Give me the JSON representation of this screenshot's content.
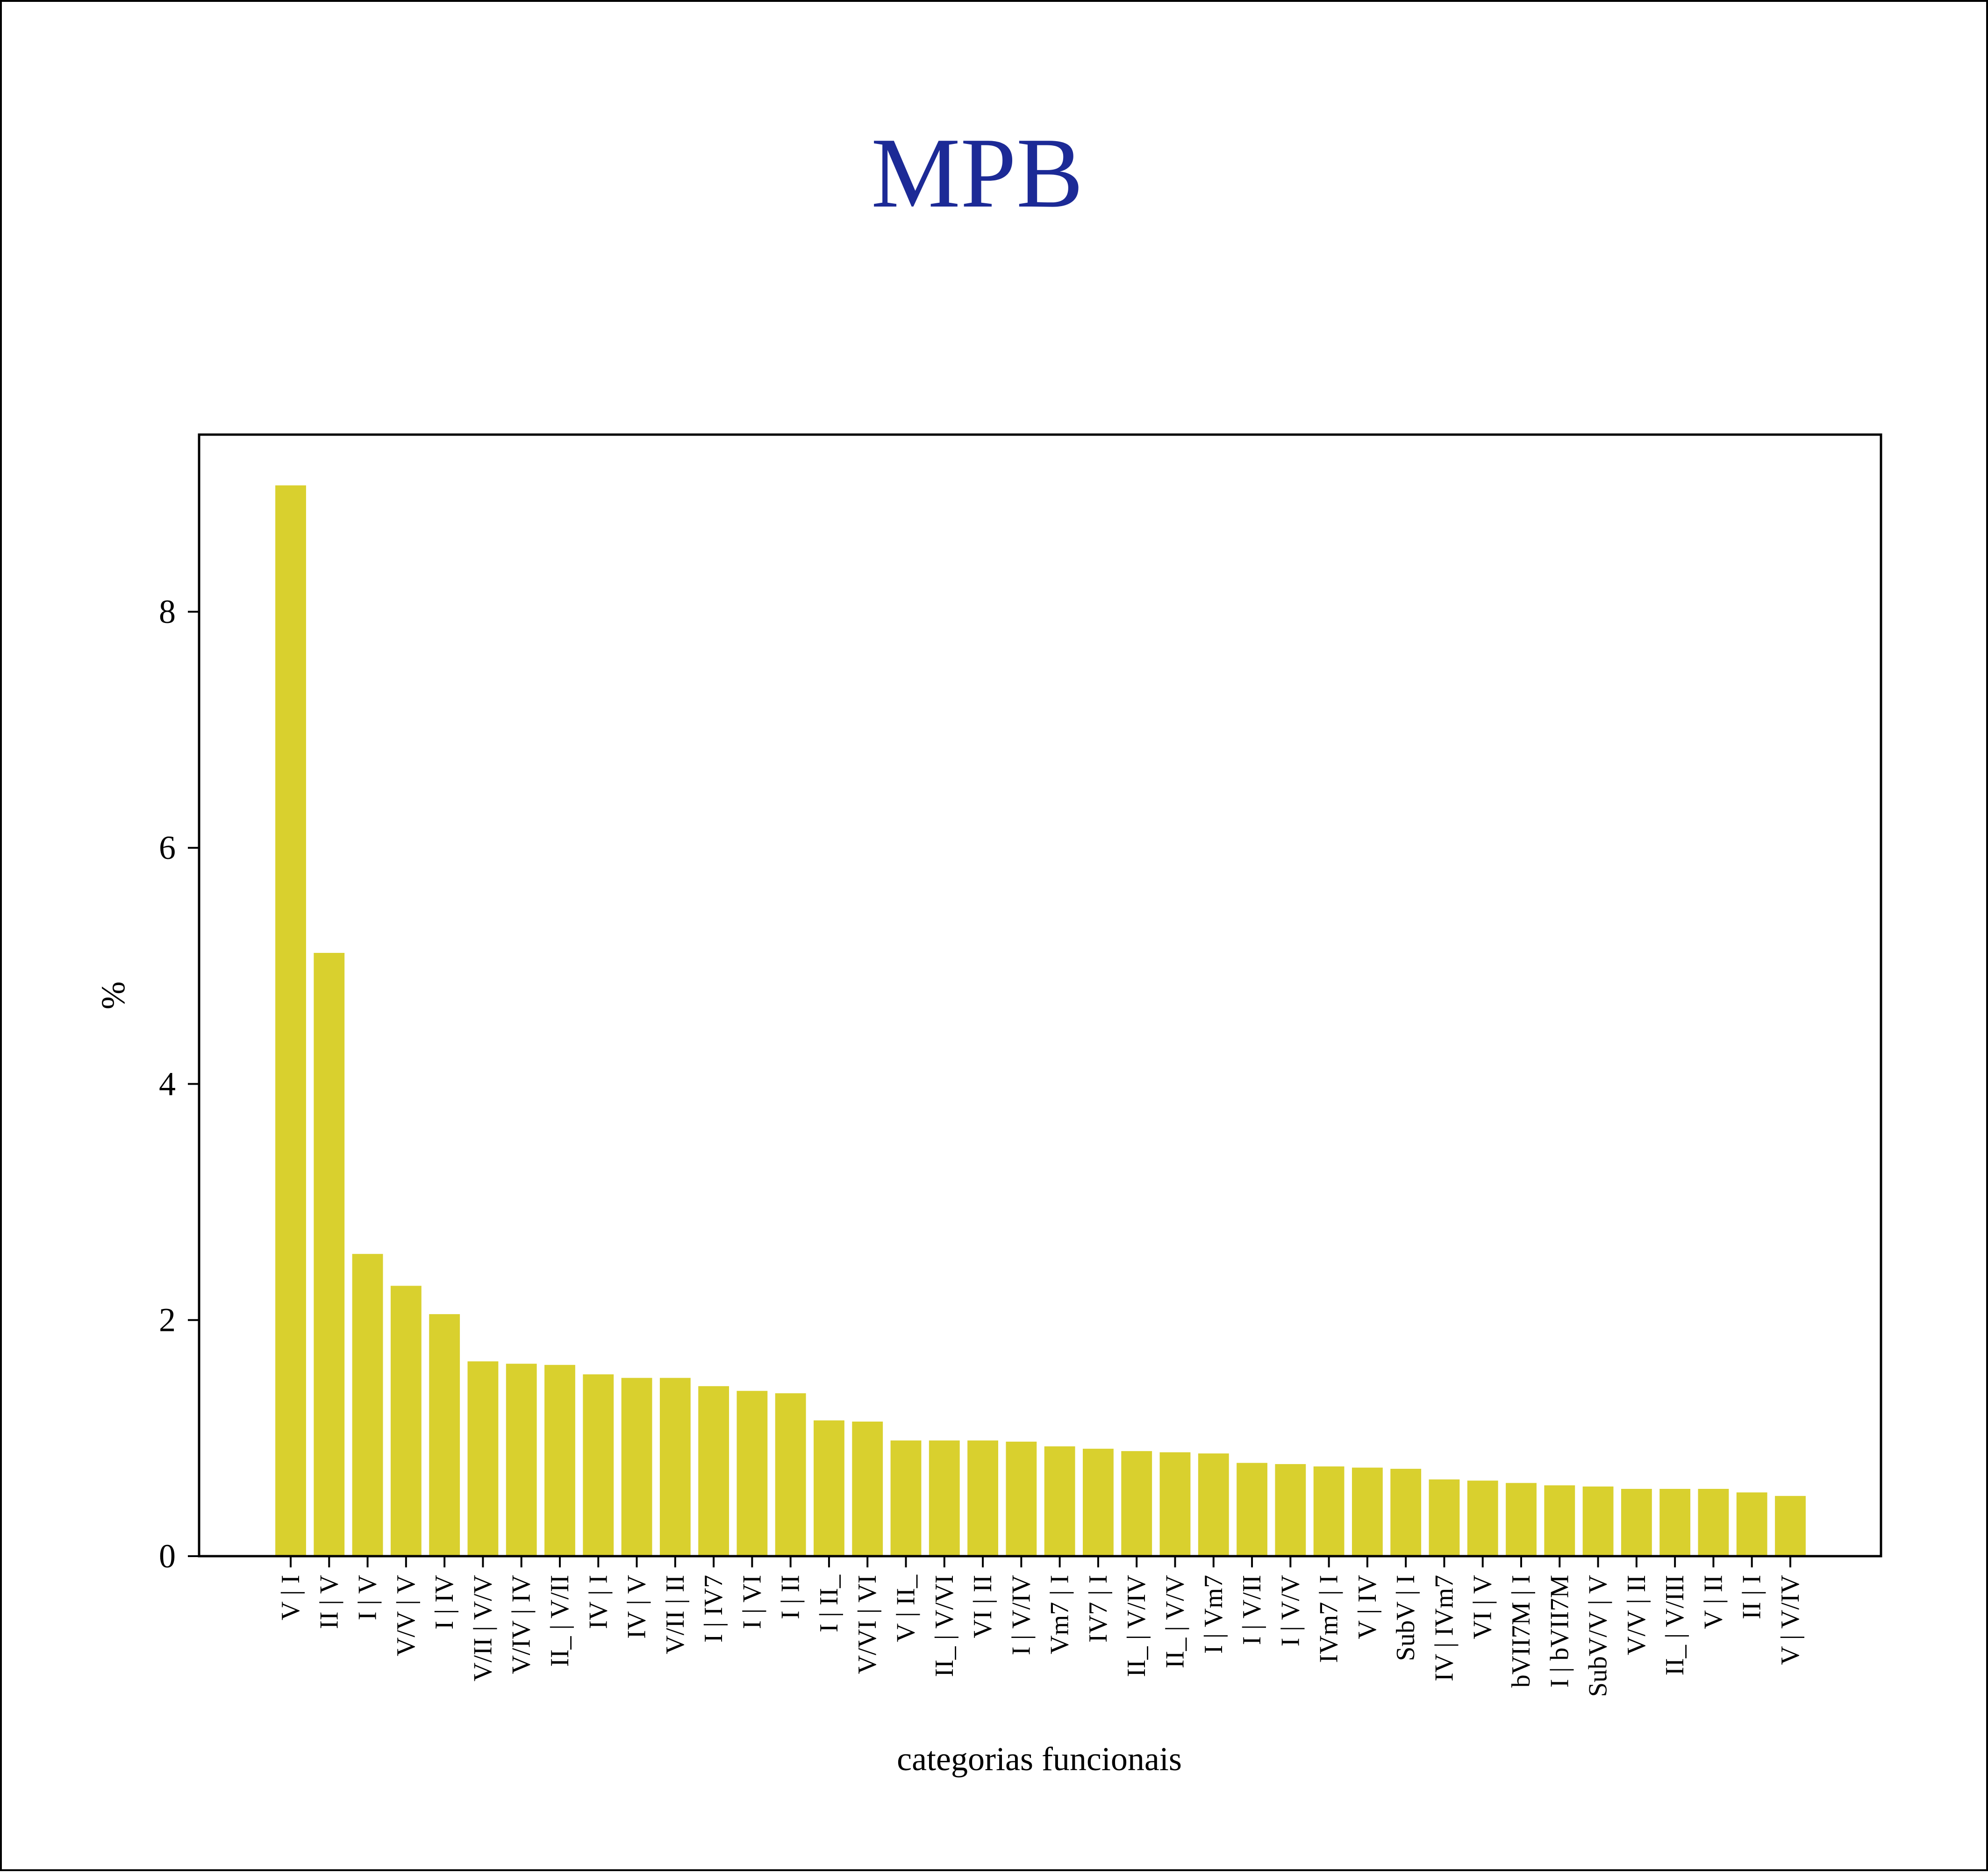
{
  "colors": {
    "bar": "#d9d02e",
    "title": "#1c2a96",
    "axis": "#000000",
    "background": "#ffffff"
  },
  "chart_data": {
    "type": "bar",
    "title": "MPB",
    "xlabel": "categorias funcionais",
    "ylabel": "%",
    "ylim": [
      0,
      9.5
    ],
    "yticks": [
      0,
      2,
      4,
      6,
      8
    ],
    "grid": false,
    "categories": [
      "V | I",
      "II | V",
      "I | V",
      "V/V | V",
      "I | IV",
      "V/II | V/V",
      "V/IV | IV",
      "II_ | V/II",
      "IV | I",
      "IV | V",
      "V/II | II",
      "I | IV7",
      "I | VI",
      "I | II",
      "I | II_",
      "V/VI | VI",
      "V | II_",
      "II_ | V/VI",
      "VI | II",
      "I | V/IV",
      "Vm7 | I",
      "IV7 | I",
      "II_ | V/IV",
      "II_ | V/V",
      "I | Vm7",
      "I | V/II",
      "I | V/V",
      "IVm7 | I",
      "V | IV",
      "SubV | I",
      "IV | IVm7",
      "VI | V",
      "bVII7M | I",
      "I | bVII7M",
      "SubV/V | V",
      "V/V | II",
      "II_ | V/III",
      "V | II",
      "II | I",
      "V | V/IV"
    ],
    "values": [
      9.07,
      5.11,
      2.56,
      2.29,
      2.05,
      1.65,
      1.63,
      1.62,
      1.54,
      1.51,
      1.51,
      1.44,
      1.4,
      1.38,
      1.15,
      1.14,
      0.98,
      0.98,
      0.98,
      0.97,
      0.93,
      0.91,
      0.89,
      0.88,
      0.87,
      0.79,
      0.78,
      0.76,
      0.75,
      0.74,
      0.65,
      0.64,
      0.62,
      0.6,
      0.59,
      0.57,
      0.57,
      0.57,
      0.54,
      0.51
    ]
  }
}
